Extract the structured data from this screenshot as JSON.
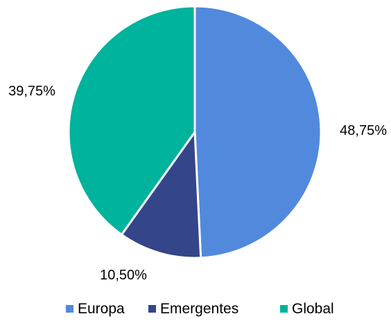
{
  "chart_data": {
    "type": "pie",
    "title": "",
    "categories": [
      "Europa",
      "Emergentes",
      "Global"
    ],
    "values": [
      48.75,
      10.5,
      39.75
    ],
    "data_labels": [
      "48,75%",
      "10,50%",
      "39,75%"
    ],
    "colors": [
      "#5189dd",
      "#35458a",
      "#00b39c"
    ],
    "start_angle": "top, clockwise",
    "legend": {
      "position": "bottom",
      "entries": [
        "Europa",
        "Emergentes",
        "Global"
      ]
    }
  }
}
